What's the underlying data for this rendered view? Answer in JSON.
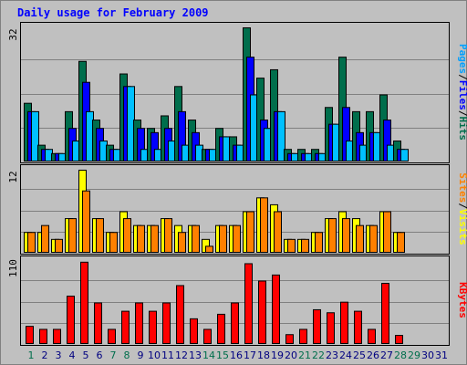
{
  "chart_data": [
    {
      "panel": "top",
      "type": "bar",
      "title": "Daily usage for February 2009",
      "ymax_label": "32",
      "ylim": [
        0,
        32
      ],
      "categories": [
        "1",
        "2",
        "3",
        "4",
        "5",
        "6",
        "7",
        "8",
        "9",
        "10",
        "11",
        "12",
        "13",
        "14",
        "15",
        "16",
        "17",
        "18",
        "19",
        "20",
        "21",
        "22",
        "23",
        "24",
        "25",
        "26",
        "27",
        "28",
        "29",
        "30",
        "31"
      ],
      "axis_labels": [
        {
          "text": "Pages",
          "color": "#00a0ff"
        },
        {
          "text": "Files",
          "color": "#0000ff"
        },
        {
          "text": "Hits",
          "color": "#006e4c"
        }
      ],
      "series": [
        {
          "name": "Hits",
          "color": "#006e4c",
          "values": [
            14,
            4,
            2,
            12,
            24,
            10,
            4,
            21,
            10,
            8,
            11,
            18,
            10,
            3,
            8,
            6,
            32,
            20,
            22,
            3,
            3,
            3,
            13,
            25,
            12,
            12,
            16,
            5,
            0,
            0,
            0
          ]
        },
        {
          "name": "Files",
          "color": "#0000ff",
          "values": [
            12,
            3,
            2,
            8,
            19,
            8,
            3,
            18,
            8,
            7,
            8,
            12,
            7,
            3,
            6,
            4,
            25,
            10,
            12,
            2,
            2,
            2,
            9,
            13,
            7,
            7,
            10,
            3,
            0,
            0,
            0
          ]
        },
        {
          "name": "Pages",
          "color": "#00c0ff",
          "values": [
            12,
            3,
            2,
            5,
            12,
            5,
            3,
            18,
            3,
            3,
            5,
            4,
            4,
            3,
            6,
            4,
            16,
            8,
            12,
            2,
            2,
            2,
            9,
            5,
            4,
            7,
            4,
            3,
            0,
            0,
            0
          ]
        }
      ]
    },
    {
      "panel": "middle",
      "type": "bar",
      "ymax_label": "12",
      "ylim": [
        0,
        12
      ],
      "categories": [
        "1",
        "2",
        "3",
        "4",
        "5",
        "6",
        "7",
        "8",
        "9",
        "10",
        "11",
        "12",
        "13",
        "14",
        "15",
        "16",
        "17",
        "18",
        "19",
        "20",
        "21",
        "22",
        "23",
        "24",
        "25",
        "26",
        "27",
        "28",
        "29",
        "30",
        "31"
      ],
      "axis_labels": [
        {
          "text": "Sites",
          "color": "#ff8000"
        },
        {
          "text": "Visits",
          "color": "#ffff00"
        }
      ],
      "series": [
        {
          "name": "Visits",
          "color": "#ffff00",
          "values": [
            3,
            3,
            2,
            5,
            12,
            5,
            3,
            6,
            4,
            4,
            5,
            4,
            4,
            2,
            4,
            4,
            6,
            8,
            7,
            2,
            2,
            3,
            5,
            6,
            5,
            4,
            6,
            3,
            0,
            0,
            0
          ]
        },
        {
          "name": "Sites",
          "color": "#ff8000",
          "values": [
            3,
            4,
            2,
            5,
            9,
            5,
            3,
            5,
            4,
            4,
            5,
            3,
            4,
            1,
            4,
            4,
            6,
            8,
            6,
            2,
            2,
            3,
            5,
            5,
            4,
            4,
            6,
            3,
            0,
            0,
            0
          ]
        }
      ]
    },
    {
      "panel": "bottom",
      "type": "bar",
      "ymax_label": "110",
      "ylim": [
        0,
        110
      ],
      "categories": [
        "1",
        "2",
        "3",
        "4",
        "5",
        "6",
        "7",
        "8",
        "9",
        "10",
        "11",
        "12",
        "13",
        "14",
        "15",
        "16",
        "17",
        "18",
        "19",
        "20",
        "21",
        "22",
        "23",
        "24",
        "25",
        "26",
        "27",
        "28",
        "29",
        "30",
        "31"
      ],
      "axis_labels": [
        {
          "text": "KBytes",
          "color": "#ff0000"
        }
      ],
      "series": [
        {
          "name": "KBytes",
          "color": "#ff0000",
          "values": [
            24,
            20,
            20,
            64,
            109,
            55,
            20,
            44,
            55,
            44,
            55,
            78,
            34,
            20,
            40,
            55,
            107,
            84,
            92,
            13,
            20,
            46,
            42,
            56,
            44,
            20,
            81,
            12,
            0,
            0,
            0
          ]
        }
      ]
    }
  ],
  "x_labels": [
    {
      "text": "1",
      "color": "#006e4c"
    },
    {
      "text": "2",
      "color": "#000080"
    },
    {
      "text": "3",
      "color": "#000080"
    },
    {
      "text": "4",
      "color": "#000080"
    },
    {
      "text": "5",
      "color": "#000080"
    },
    {
      "text": "6",
      "color": "#000080"
    },
    {
      "text": "7",
      "color": "#006e4c"
    },
    {
      "text": "8",
      "color": "#006e4c"
    },
    {
      "text": "9",
      "color": "#000080"
    },
    {
      "text": "10",
      "color": "#000080"
    },
    {
      "text": "11",
      "color": "#000080"
    },
    {
      "text": "12",
      "color": "#000080"
    },
    {
      "text": "13",
      "color": "#000080"
    },
    {
      "text": "14",
      "color": "#006e4c"
    },
    {
      "text": "15",
      "color": "#006e4c"
    },
    {
      "text": "16",
      "color": "#000080"
    },
    {
      "text": "17",
      "color": "#000080"
    },
    {
      "text": "18",
      "color": "#000080"
    },
    {
      "text": "19",
      "color": "#000080"
    },
    {
      "text": "20",
      "color": "#000080"
    },
    {
      "text": "21",
      "color": "#006e4c"
    },
    {
      "text": "22",
      "color": "#006e4c"
    },
    {
      "text": "23",
      "color": "#000080"
    },
    {
      "text": "24",
      "color": "#000080"
    },
    {
      "text": "25",
      "color": "#000080"
    },
    {
      "text": "26",
      "color": "#000080"
    },
    {
      "text": "27",
      "color": "#000080"
    },
    {
      "text": "28",
      "color": "#006e4c"
    },
    {
      "text": "29",
      "color": "#006e4c"
    },
    {
      "text": "30",
      "color": "#000080"
    },
    {
      "text": "31",
      "color": "#000080"
    }
  ],
  "colors": {
    "background": "#c0c0c0",
    "plot_background": "#c0c0c0",
    "title": "#0000ff",
    "gridline": "#808080",
    "frame_dark": "#000000"
  }
}
